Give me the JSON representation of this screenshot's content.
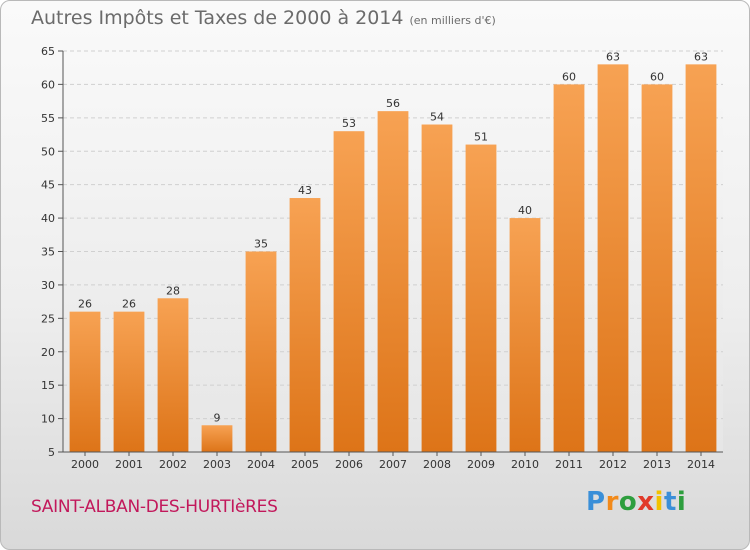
{
  "header": {
    "title": "Autres Impôts et Taxes de 2000 à 2014",
    "unit": "(en milliers d'€)"
  },
  "footer": {
    "commune": "SAINT-ALBAN-DES-HURTIèRES",
    "logo_letters": [
      "P",
      "r",
      "o",
      "x",
      "i",
      "t",
      "i"
    ],
    "logo_colors": [
      "#3a8fd8",
      "#f28a1a",
      "#2e9e3e",
      "#e13a2a",
      "#f2c200",
      "#3a8fd8",
      "#2e9e3e"
    ]
  },
  "chart_data": {
    "type": "bar",
    "title": "Autres Impôts et Taxes de 2000 à 2014",
    "subtitle": "(en milliers d'€)",
    "categories": [
      "2000",
      "2001",
      "2002",
      "2003",
      "2004",
      "2005",
      "2006",
      "2007",
      "2008",
      "2009",
      "2010",
      "2011",
      "2012",
      "2013",
      "2014"
    ],
    "values": [
      26,
      26,
      28,
      9,
      35,
      43,
      53,
      56,
      54,
      51,
      40,
      60,
      63,
      60,
      63
    ],
    "ylim": [
      5,
      65
    ],
    "yticks": [
      5,
      10,
      15,
      20,
      25,
      30,
      35,
      40,
      45,
      50,
      55,
      60,
      65
    ],
    "grid": true,
    "bar_color": "#f08a2a"
  }
}
